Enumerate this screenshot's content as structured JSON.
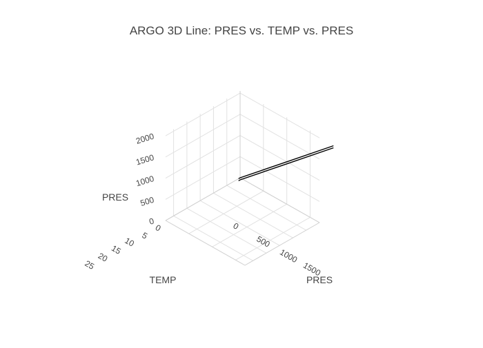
{
  "chart_data": {
    "type": "line",
    "title": "ARGO 3D Line: PRES vs. TEMP vs. PRES",
    "axes": {
      "x": {
        "label": "PRES",
        "range": [
          0,
          1700
        ],
        "ticks": [
          0,
          500,
          1000,
          1500
        ]
      },
      "y": {
        "label": "TEMP",
        "range": [
          0,
          28
        ],
        "ticks": [
          0,
          5,
          10,
          15,
          20,
          25
        ]
      },
      "z": {
        "label": "PRES",
        "range": [
          0,
          2050
        ],
        "ticks": [
          0,
          500,
          1000,
          1500,
          2000
        ]
      }
    },
    "grid": true,
    "series": [
      {
        "color": "#000000",
        "points": [
          {
            "x": 2000,
            "y": 0,
            "z": 2000
          },
          {
            "x": 1000,
            "y": 0,
            "z": 1000
          },
          {
            "x": 0,
            "y": 0,
            "z": 0
          },
          {
            "x": 0,
            "y": 0.6,
            "z": 0
          }
        ]
      }
    ]
  }
}
